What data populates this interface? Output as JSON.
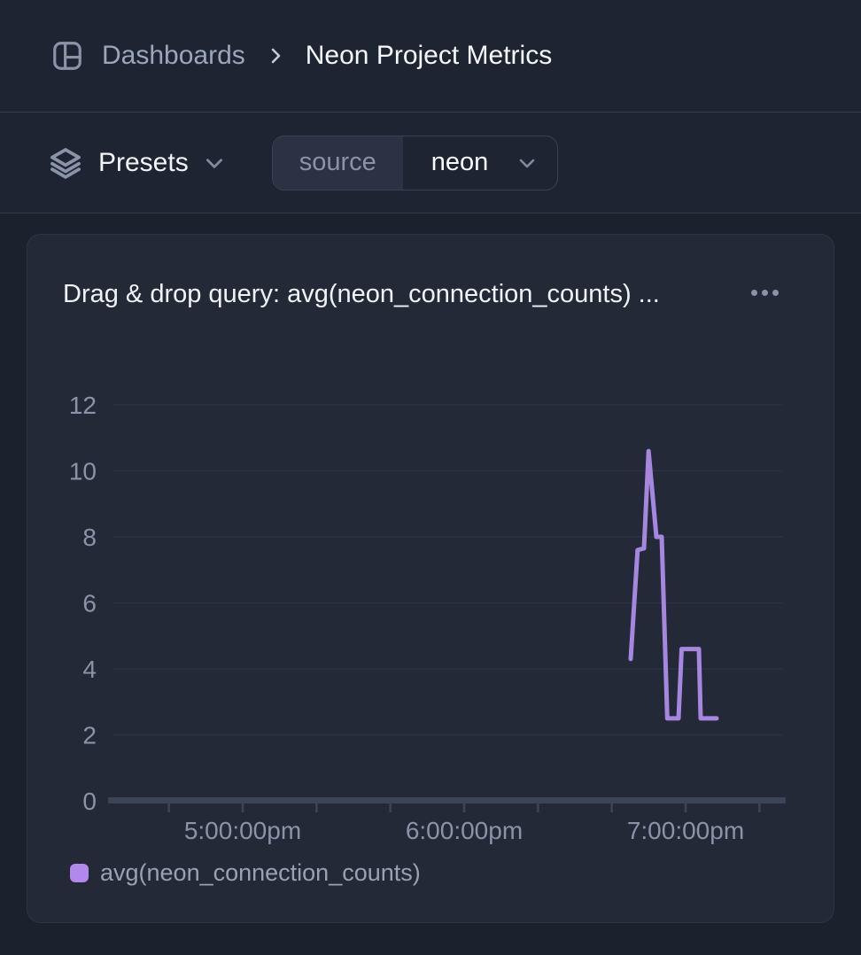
{
  "header": {
    "breadcrumb": {
      "section": "Dashboards",
      "current": "Neon Project Metrics"
    }
  },
  "toolbar": {
    "presets_label": "Presets",
    "filter": {
      "key": "source",
      "value": "neon"
    }
  },
  "panel": {
    "title": "Drag & drop query: avg(neon_connection_counts) ...",
    "legend": {
      "label": "avg(neon_connection_counts)",
      "swatch_color": "#b288ec"
    }
  },
  "colors": {
    "page_bg": "#1c212e",
    "bar_bg": "#1f2433",
    "card_bg": "#232937",
    "card_border": "#2e3547",
    "divider": "#343b4e",
    "gridline": "#2c3344",
    "axis_bar": "#3c4457",
    "axis_label": "#8a93a8",
    "series_line": "#a687e0"
  },
  "chart_data": {
    "type": "line",
    "title": "Drag & drop query: avg(neon_connection_counts) ...",
    "xlabel": "",
    "ylabel": "",
    "grid": true,
    "legend_position": "bottom-left",
    "y_axis": {
      "range": [
        0,
        12
      ],
      "tick_step": 2,
      "ticks": [
        0,
        2,
        4,
        6,
        8,
        10,
        12
      ]
    },
    "x_axis": {
      "unit": "time_hours_24h",
      "range_hours": [
        16.4,
        19.45
      ],
      "tick_hours": [
        16.6667,
        17.0,
        17.3333,
        17.6667,
        18.0,
        18.3333,
        18.6667,
        19.0,
        19.3333
      ],
      "labeled_ticks": [
        {
          "t": 17.0,
          "label": "5:00:00pm"
        },
        {
          "t": 18.0,
          "label": "6:00:00pm"
        },
        {
          "t": 19.0,
          "label": "7:00:00pm"
        }
      ]
    },
    "series": [
      {
        "name": "avg(neon_connection_counts)",
        "color": "#a687e0",
        "points": [
          [
            18.752,
            4.3
          ],
          [
            18.783,
            7.6
          ],
          [
            18.812,
            7.65
          ],
          [
            18.833,
            10.6
          ],
          [
            18.868,
            8.0
          ],
          [
            18.892,
            8.0
          ],
          [
            18.917,
            2.5
          ],
          [
            18.968,
            2.5
          ],
          [
            18.982,
            4.6
          ],
          [
            19.06,
            4.6
          ],
          [
            19.068,
            2.5
          ],
          [
            19.14,
            2.5
          ]
        ]
      }
    ]
  }
}
